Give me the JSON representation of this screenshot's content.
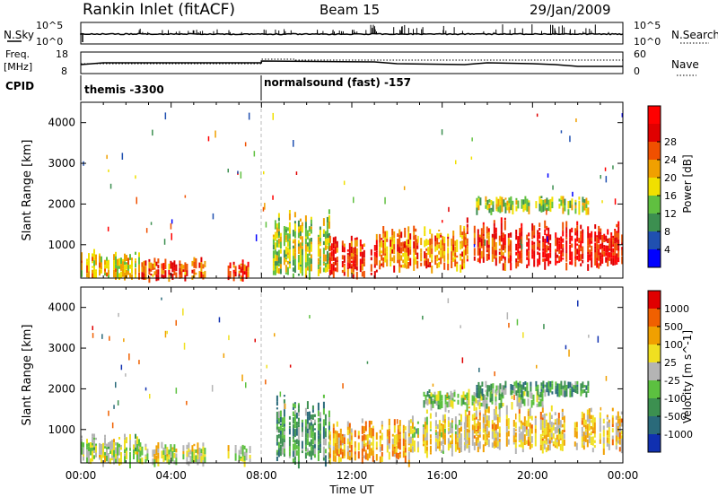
{
  "header": {
    "station": "Rankin Inlet (fitACF)",
    "beam": "Beam 15",
    "date": "29/Jan/2009"
  },
  "status_panels": {
    "nsky_label": "N.Sky",
    "nsky_ticks": [
      "10^5",
      "10^0"
    ],
    "nsearch_ticks": [
      "10^5",
      "10^0"
    ],
    "nsearch_label": "N.Search",
    "freq_label_1": "Freq.",
    "freq_label_2": "[MHz]",
    "freq_ticks": [
      "18",
      "8"
    ],
    "nave_ticks": [
      "60",
      "0"
    ],
    "nave_label": "Nave",
    "cpid_label": "CPID",
    "cpid_segments": [
      {
        "start_hour": 0,
        "end_hour": 8,
        "text": "themis -3300"
      },
      {
        "start_hour": 8,
        "end_hour": 24,
        "text": "normalsound (fast) -157"
      }
    ]
  },
  "colors": {
    "power_scale": [
      "#0000ff",
      "#2050b0",
      "#3c8f50",
      "#60c040",
      "#f0e000",
      "#f0a000",
      "#f05000",
      "#e00000",
      "#ff0000"
    ],
    "velocity_scale": [
      "#1030b0",
      "#2a6a7a",
      "#3c9050",
      "#5cc040",
      "#b4b4b4",
      "#f0e020",
      "#f0a000",
      "#f06000",
      "#e00000"
    ]
  },
  "chart_data": [
    {
      "type": "heatmap",
      "name": "power",
      "ylabel": "Slant Range [km]",
      "xlabel": "",
      "x_ticks": [],
      "y_ticks": [
        "1000",
        "2000",
        "3000",
        "4000"
      ],
      "colorbar_label": "Power [dB]",
      "colorbar_ticks": [
        "4",
        "8",
        "12",
        "16",
        "20",
        "24",
        "28"
      ],
      "xlim": [
        0,
        24
      ],
      "ylim": [
        180,
        4500
      ],
      "echo_regions": [
        {
          "x0": 0.0,
          "x1": 2.6,
          "y0": 200,
          "y1": 900,
          "level": 0.55
        },
        {
          "x0": 2.6,
          "x1": 5.5,
          "y0": 200,
          "y1": 700,
          "level": 0.75
        },
        {
          "x0": 6.5,
          "x1": 7.5,
          "y0": 200,
          "y1": 650,
          "level": 0.8
        },
        {
          "x0": 8.5,
          "x1": 11.0,
          "y0": 200,
          "y1": 1900,
          "level": 0.45
        },
        {
          "x0": 11.0,
          "x1": 13.2,
          "y0": 250,
          "y1": 1300,
          "level": 0.8
        },
        {
          "x0": 13.2,
          "x1": 17.0,
          "y0": 400,
          "y1": 1500,
          "level": 0.65
        },
        {
          "x0": 17.0,
          "x1": 19.0,
          "y0": 500,
          "y1": 1700,
          "level": 0.8
        },
        {
          "x0": 19.0,
          "x1": 24.0,
          "y0": 500,
          "y1": 1600,
          "level": 0.9
        },
        {
          "x0": 17.5,
          "x1": 22.5,
          "y0": 1850,
          "y1": 2200,
          "level": 0.45
        }
      ]
    },
    {
      "type": "heatmap",
      "name": "velocity",
      "ylabel": "Slant Range [km]",
      "xlabel": "Time UT",
      "x_ticks": [
        "00:00",
        "04:00",
        "08:00",
        "12:00",
        "16:00",
        "20:00",
        "00:00"
      ],
      "y_ticks": [
        "1000",
        "2000",
        "3000",
        "4000"
      ],
      "colorbar_label": "Velocity [m s^-1]",
      "colorbar_ticks": [
        "1000",
        "500",
        "100",
        "25",
        "-25",
        "-100",
        "-500",
        "-1000"
      ],
      "xlim": [
        0,
        24
      ],
      "ylim": [
        180,
        4500
      ],
      "echo_regions": [
        {
          "x0": 0.0,
          "x1": 2.6,
          "y0": 200,
          "y1": 900,
          "level": 0.5
        },
        {
          "x0": 2.6,
          "x1": 5.5,
          "y0": 200,
          "y1": 700,
          "level": 0.55
        },
        {
          "x0": 6.5,
          "x1": 7.5,
          "y0": 200,
          "y1": 650,
          "level": 0.5
        },
        {
          "x0": 8.5,
          "x1": 11.0,
          "y0": 200,
          "y1": 1900,
          "level": 0.3
        },
        {
          "x0": 11.0,
          "x1": 14.5,
          "y0": 250,
          "y1": 1300,
          "level": 0.7
        },
        {
          "x0": 14.5,
          "x1": 17.0,
          "y0": 400,
          "y1": 1500,
          "level": 0.6
        },
        {
          "x0": 17.0,
          "x1": 24.0,
          "y0": 500,
          "y1": 1600,
          "level": 0.65
        },
        {
          "x0": 15.0,
          "x1": 20.5,
          "y0": 1600,
          "y1": 2000,
          "level": 0.45
        },
        {
          "x0": 17.5,
          "x1": 22.5,
          "y0": 1900,
          "y1": 2200,
          "level": 0.3
        }
      ]
    }
  ]
}
